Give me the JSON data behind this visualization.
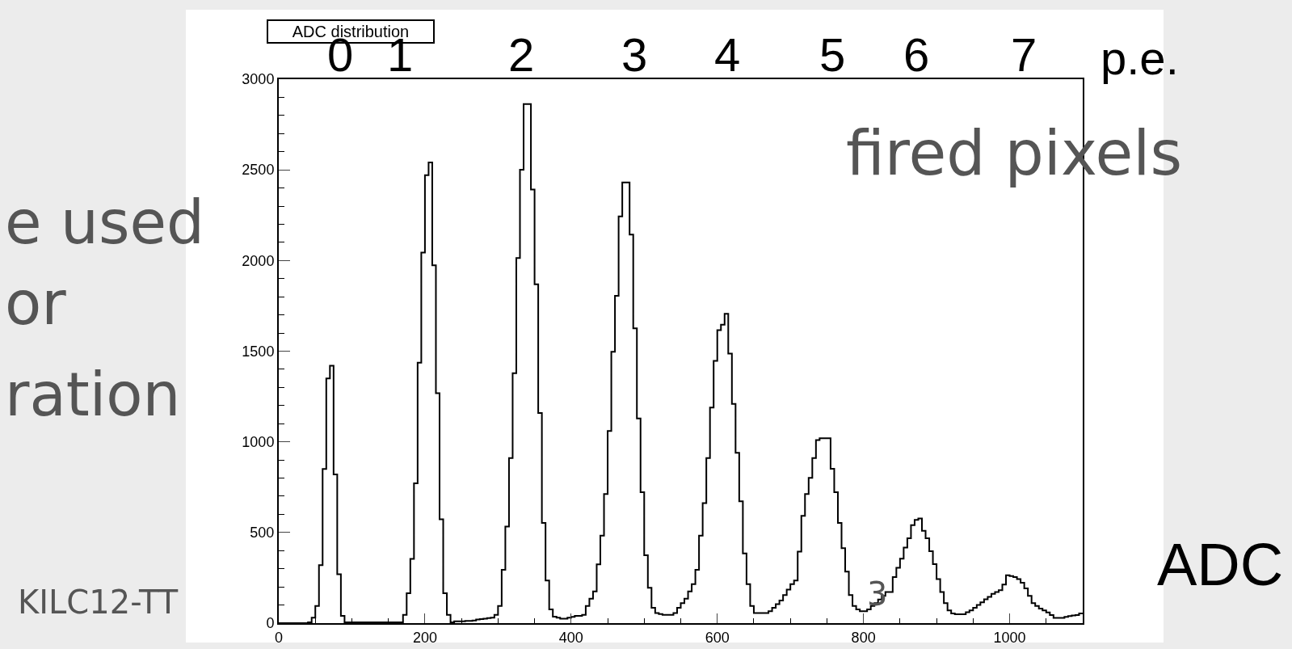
{
  "chart_data": {
    "type": "histogram",
    "title": "ADC distribution",
    "xlabel": "ADC",
    "bins": [
      0,
      5,
      10,
      15,
      20,
      25,
      30,
      35,
      40,
      45,
      50,
      55,
      60,
      65,
      70,
      75,
      80,
      85,
      90,
      95,
      100,
      105,
      110,
      115,
      120,
      125,
      130,
      135,
      140,
      145,
      150,
      155,
      160,
      165,
      170,
      175,
      180,
      185,
      190,
      195,
      200,
      205,
      210,
      215,
      220,
      225,
      230,
      235,
      240,
      245,
      250,
      255,
      260,
      265,
      270,
      275,
      280,
      285,
      290,
      295,
      300,
      305,
      310,
      315,
      320,
      325,
      330,
      335,
      340,
      345,
      350,
      355,
      360,
      365,
      370,
      375,
      380,
      385,
      390,
      395,
      400,
      405,
      410,
      415,
      420,
      425,
      430,
      435,
      440,
      445,
      450,
      455,
      460,
      465,
      470,
      475,
      480,
      485,
      490,
      495,
      500,
      505,
      510,
      515,
      520,
      525,
      530,
      535,
      540,
      545,
      550,
      555,
      560,
      565,
      570,
      575,
      580,
      585,
      590,
      595,
      600,
      605,
      610,
      615,
      620,
      625,
      630,
      635,
      640,
      645,
      650,
      655,
      660,
      665,
      670,
      675,
      680,
      685,
      690,
      695,
      700,
      705,
      710,
      715,
      720,
      725,
      730,
      735,
      740,
      745,
      750,
      755,
      760,
      765,
      770,
      775,
      780,
      785,
      790,
      795,
      800,
      805,
      810,
      815,
      820,
      825,
      830,
      835,
      840,
      845,
      850,
      855,
      860,
      865,
      870,
      875,
      880,
      885,
      890,
      895,
      900,
      905,
      910,
      915,
      920,
      925,
      930,
      935,
      940,
      945,
      950,
      955,
      960,
      965,
      970,
      975,
      980,
      985,
      990,
      995,
      1000,
      1005,
      1010,
      1015,
      1020,
      1025,
      1030,
      1035,
      1040,
      1045,
      1050,
      1055,
      1060,
      1065,
      1070,
      1075,
      1080,
      1085,
      1090,
      1095,
      1100
    ],
    "values": [
      0,
      0,
      0,
      0,
      0,
      0,
      0,
      0,
      5,
      30,
      95,
      320,
      850,
      1350,
      1420,
      820,
      270,
      40,
      5,
      5,
      5,
      5,
      5,
      5,
      5,
      5,
      5,
      5,
      5,
      5,
      5,
      5,
      5,
      5,
      46,
      165,
      354,
      771,
      1437,
      2044,
      2471,
      2541,
      1974,
      1268,
      573,
      165,
      46,
      5,
      10,
      10,
      10,
      12,
      12,
      15,
      20,
      22,
      25,
      28,
      30,
      46,
      95,
      294,
      533,
      911,
      1378,
      2014,
      2501,
      2863,
      2863,
      2392,
      1869,
      1159,
      553,
      235,
      76,
      36,
      30,
      25,
      25,
      30,
      35,
      40,
      40,
      46,
      95,
      135,
      175,
      324,
      483,
      712,
      1060,
      1497,
      1805,
      2243,
      2431,
      2431,
      2143,
      1626,
      1129,
      722,
      374,
      195,
      85,
      56,
      50,
      46,
      46,
      46,
      56,
      85,
      110,
      135,
      175,
      215,
      294,
      483,
      662,
      911,
      1189,
      1447,
      1616,
      1646,
      1706,
      1487,
      1209,
      940,
      672,
      384,
      215,
      95,
      56,
      56,
      56,
      56,
      66,
      85,
      105,
      125,
      155,
      185,
      215,
      235,
      394,
      592,
      712,
      801,
      911,
      1010,
      1020,
      1020,
      1020,
      851,
      722,
      553,
      414,
      284,
      155,
      95,
      76,
      66,
      66,
      76,
      95,
      110,
      130,
      150,
      172,
      172,
      254,
      305,
      356,
      417,
      468,
      540,
      570,
      577,
      509,
      468,
      397,
      325,
      243,
      172,
      110,
      70,
      53,
      49,
      49,
      49,
      60,
      70,
      85,
      100,
      115,
      131,
      145,
      162,
      172,
      182,
      213,
      264,
      260,
      254,
      243,
      223,
      192,
      151,
      110,
      95,
      80,
      70,
      59,
      45,
      29,
      29,
      29,
      35,
      39,
      42,
      45,
      53
    ],
    "color": "#000000",
    "xlim": [
      0,
      1100
    ],
    "xticks": [
      0,
      200,
      400,
      600,
      800,
      1000
    ],
    "ylim": [
      0,
      3000
    ],
    "yticks": [
      0,
      500,
      1000,
      1500,
      2000,
      2500,
      3000
    ],
    "legend": false,
    "annotations": [
      "0",
      "1",
      "2",
      "3",
      "4",
      "5",
      "6",
      "7",
      "p.e.",
      "fired pixels",
      "e used",
      "or",
      "ration",
      "KILC12-TT",
      "3"
    ]
  }
}
